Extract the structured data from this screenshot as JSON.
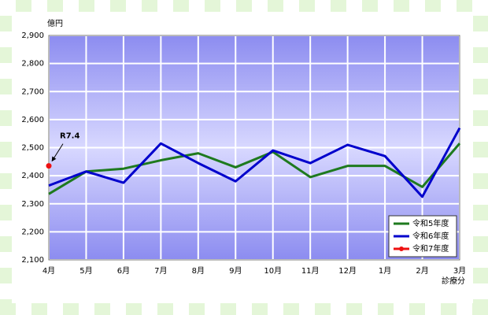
{
  "chart_data": {
    "type": "line",
    "y_unit": "億円",
    "x_unit": "診療分",
    "categories": [
      "4月",
      "5月",
      "6月",
      "7月",
      "8月",
      "9月",
      "10月",
      "11月",
      "12月",
      "1月",
      "2月",
      "3月"
    ],
    "series": [
      {
        "name": "令和5年度",
        "color": "#1e7a1e",
        "values": [
          2335,
          2415,
          2425,
          2455,
          2480,
          2430,
          2485,
          2395,
          2435,
          2435,
          2360,
          2515
        ]
      },
      {
        "name": "令和6年度",
        "color": "#0000cc",
        "values": [
          2365,
          2415,
          2375,
          2515,
          2445,
          2380,
          2490,
          2445,
          2510,
          2470,
          2325,
          2570
        ]
      },
      {
        "name": "令和7年度",
        "color": "#ee1111",
        "values": [
          2435,
          null,
          null,
          null,
          null,
          null,
          null,
          null,
          null,
          null,
          null,
          null
        ]
      }
    ],
    "annotation": "R7.4",
    "ylim": [
      2100,
      2900
    ],
    "yticks": [
      {
        "value": 2100,
        "label": "2,100"
      },
      {
        "value": 2200,
        "label": "2,200"
      },
      {
        "value": 2300,
        "label": "2,300"
      },
      {
        "value": 2400,
        "label": "2,400"
      },
      {
        "value": 2500,
        "label": "2,500"
      },
      {
        "value": 2600,
        "label": "2,600"
      },
      {
        "value": 2700,
        "label": "2,700"
      },
      {
        "value": 2800,
        "label": "2,800"
      },
      {
        "value": 2900,
        "label": "2,900"
      }
    ],
    "grid": true,
    "legend": "bottom-right"
  }
}
